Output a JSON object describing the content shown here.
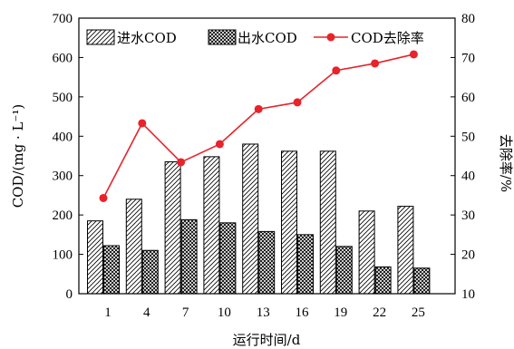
{
  "chart_data": {
    "type": "bar",
    "categories": [
      "1",
      "4",
      "7",
      "10",
      "13",
      "16",
      "19",
      "22",
      "25"
    ],
    "series": [
      {
        "name": "进水COD",
        "type": "bar",
        "axis": "left",
        "pattern": "diagonal-hatch",
        "values": [
          185,
          240,
          335,
          348,
          380,
          362,
          362,
          210,
          222
        ]
      },
      {
        "name": "出水COD",
        "type": "bar",
        "axis": "left",
        "pattern": "crosshatch",
        "values": [
          122,
          110,
          188,
          180,
          158,
          150,
          120,
          68,
          65
        ]
      },
      {
        "name": "COD去除率",
        "type": "line",
        "axis": "right",
        "marker": "circle",
        "values": [
          34.3,
          53.3,
          43.4,
          48.0,
          56.9,
          58.6,
          66.7,
          68.5,
          70.8
        ]
      }
    ],
    "xlabel": "运行时间/d",
    "ylabel": "COD/(mg · L⁻¹)",
    "y2label": "去除率/%",
    "ylim": [
      0,
      700
    ],
    "y2lim": [
      10,
      80
    ],
    "yticks": [
      "0",
      "100",
      "200",
      "300",
      "400",
      "500",
      "600",
      "700"
    ],
    "y2ticks": [
      "10",
      "20",
      "30",
      "40",
      "50",
      "60",
      "70",
      "80"
    ],
    "legend_position": "top",
    "grid": false,
    "colors": {
      "line": "#e8232a",
      "marker": "#e8232a",
      "bars": "#000000",
      "background": "#ffffff"
    }
  }
}
